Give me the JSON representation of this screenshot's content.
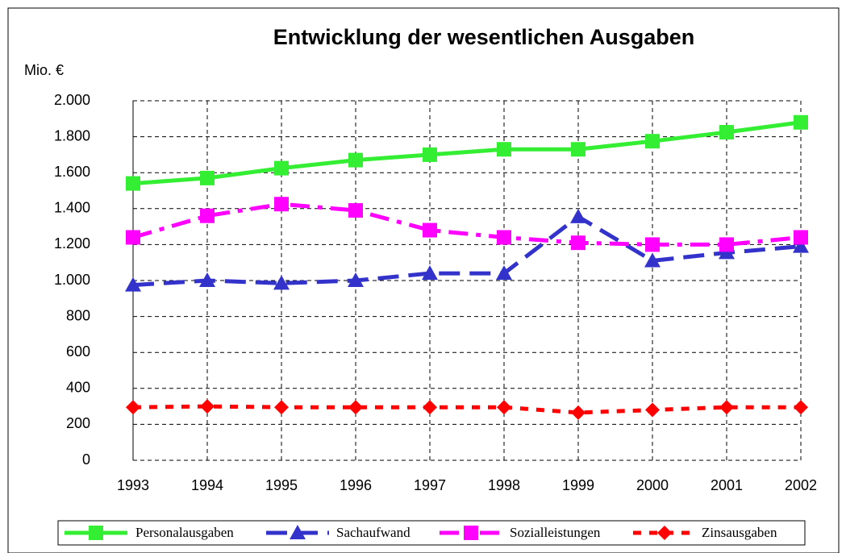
{
  "chart_data": {
    "type": "line",
    "title": "Entwicklung der wesentlichen Ausgaben",
    "y_label": "Mio. €",
    "categories": [
      "1993",
      "1994",
      "1995",
      "1996",
      "1997",
      "1998",
      "1999",
      "2000",
      "2001",
      "2002"
    ],
    "series": [
      {
        "name": "Personalausgaben",
        "color": "#33ee33",
        "marker": "square",
        "dash": "solid",
        "values": [
          1540,
          1570,
          1625,
          1670,
          1700,
          1730,
          1730,
          1775,
          1825,
          1880
        ]
      },
      {
        "name": "Sachaufwand",
        "color": "#3333cc",
        "marker": "triangle",
        "dash": "long-dash",
        "values": [
          975,
          1000,
          985,
          1000,
          1040,
          1040,
          1355,
          1110,
          1155,
          1190
        ]
      },
      {
        "name": "Sozialleistungen",
        "color": "#ff00ff",
        "marker": "square",
        "dash": "dash-dot",
        "values": [
          1240,
          1360,
          1425,
          1390,
          1280,
          1240,
          1210,
          1200,
          1200,
          1240
        ]
      },
      {
        "name": "Zinsausgaben",
        "color": "#ff0000",
        "marker": "diamond",
        "dash": "short-dash",
        "values": [
          295,
          300,
          295,
          295,
          295,
          295,
          265,
          280,
          295,
          295
        ]
      }
    ],
    "ylim": [
      0,
      2000
    ],
    "yticks": [
      0,
      200,
      400,
      600,
      800,
      {
        "value": 1000,
        "label": "1.000"
      },
      {
        "value": 1200,
        "label": "1.200"
      },
      {
        "value": 1400,
        "label": "1.400"
      },
      {
        "value": 1600,
        "label": "1.600"
      },
      {
        "value": 1800,
        "label": "1.800"
      },
      {
        "value": 2000,
        "label": "2.000"
      }
    ],
    "grid": true,
    "legend": "bottom"
  }
}
